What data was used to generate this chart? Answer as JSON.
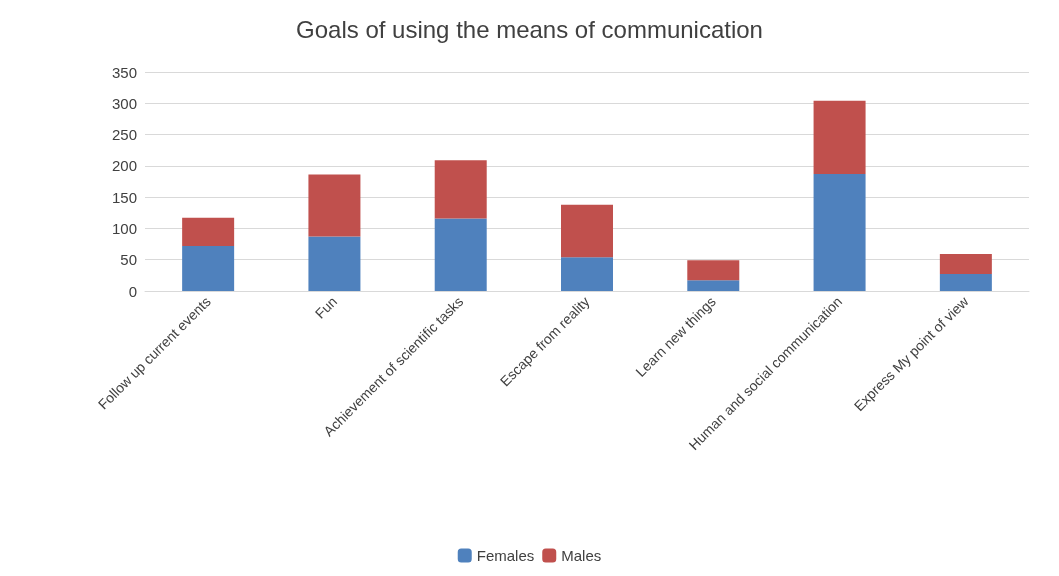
{
  "chart_data": {
    "type": "bar",
    "title": "Goals of using the means of communication",
    "categories": [
      "Follow up current events",
      "Fun",
      "Achievement of scientific tasks",
      "Escape from reality",
      "Learn new things",
      "Human and social communication",
      "Express My point of view"
    ],
    "series": [
      {
        "name": "Females",
        "color": "#4f81bd",
        "values": [
          72,
          87,
          116,
          54,
          17,
          187,
          27
        ]
      },
      {
        "name": "Males",
        "color": "#c0504d",
        "values": [
          45,
          99,
          93,
          84,
          32,
          117,
          32
        ]
      }
    ],
    "stacked": true,
    "ylim": [
      0,
      350
    ],
    "yticks": [
      0,
      50,
      100,
      150,
      200,
      250,
      300,
      350
    ],
    "grid": "y",
    "legend": "bottom"
  }
}
